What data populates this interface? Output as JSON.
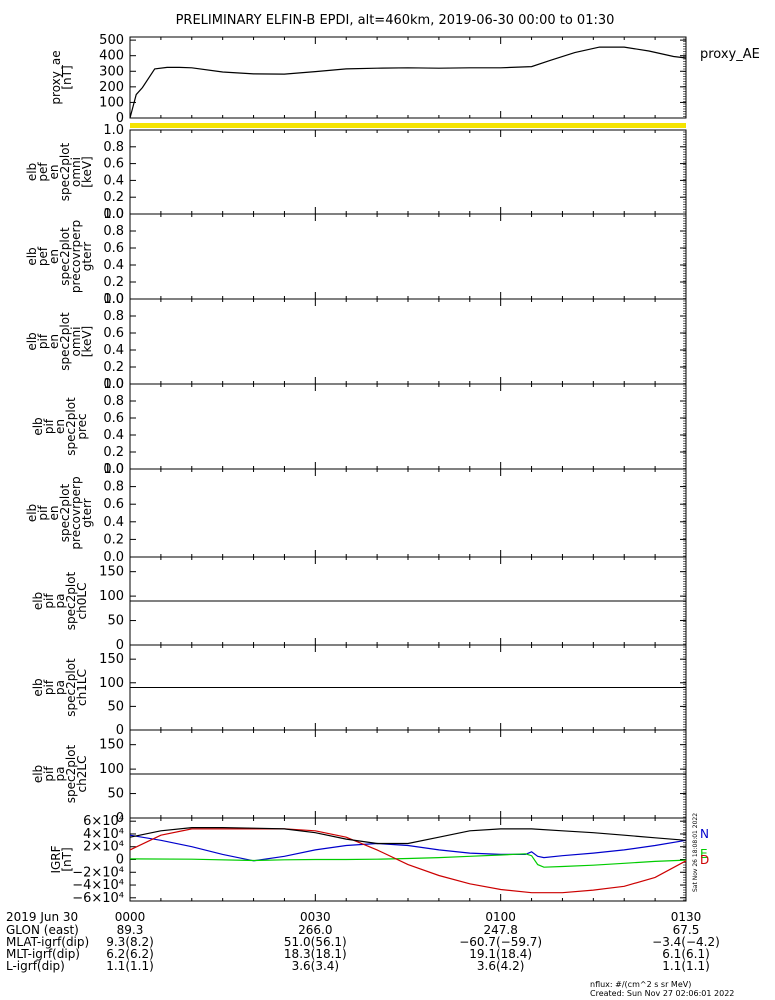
{
  "title": "PRELIMINARY ELFIN-B EPDI, alt=460km, 2019-06-30 00:00 to 01:30",
  "colors": {
    "axis": "#000000",
    "yellow_bar": "#f5e400",
    "trace_n": "#0000cc",
    "trace_e": "#00cc00",
    "trace_d": "#cc0000",
    "trace_total": "#000000"
  },
  "chart_data": [
    {
      "type": "line",
      "panel": "proxy_ae",
      "ylabel": [
        "proxy_ae",
        "[nT]"
      ],
      "yticks": [
        "500",
        "400",
        "300",
        "200",
        "100",
        "0"
      ],
      "ytick_values": [
        500,
        400,
        300,
        200,
        100,
        0
      ],
      "ylim": [
        0,
        520
      ],
      "xlim": [
        0,
        90
      ],
      "legend": "proxy_AE",
      "x": [
        0,
        1,
        2,
        4,
        6,
        8,
        10,
        15,
        20,
        25,
        30,
        35,
        40,
        45,
        50,
        55,
        60,
        65,
        68,
        72,
        76,
        80,
        84,
        88,
        90
      ],
      "values": [
        0,
        150,
        195,
        315,
        325,
        325,
        322,
        295,
        283,
        282,
        298,
        315,
        320,
        322,
        320,
        322,
        322,
        330,
        370,
        420,
        455,
        455,
        430,
        395,
        385
      ]
    },
    {
      "type": "heatmap",
      "panel": "elb_pef_omni",
      "ylabel": [
        "elb",
        "pef",
        "en",
        "spec2plot",
        "omni",
        "[keV]"
      ],
      "yticks": [
        "1.0",
        "0.8",
        "0.6",
        "0.4",
        "0.2",
        "0.0"
      ],
      "ylim": [
        0,
        1
      ],
      "values": []
    },
    {
      "type": "heatmap",
      "panel": "elb_pef_precovrperp",
      "ylabel": [
        "elb",
        "pef",
        "en",
        "spec2plot",
        "precovrperp",
        "gterr"
      ],
      "yticks": [
        "1.0",
        "0.8",
        "0.6",
        "0.4",
        "0.2",
        "0.0"
      ],
      "ylim": [
        0,
        1
      ],
      "values": []
    },
    {
      "type": "heatmap",
      "panel": "elb_pif_omni",
      "ylabel": [
        "elb",
        "pif",
        "en",
        "spec2plot",
        "omni",
        "[keV]"
      ],
      "yticks": [
        "1.0",
        "0.8",
        "0.6",
        "0.4",
        "0.2",
        "0.0"
      ],
      "ylim": [
        0,
        1
      ],
      "values": []
    },
    {
      "type": "heatmap",
      "panel": "elb_pif_prec",
      "ylabel": [
        "elb",
        "pif",
        "en",
        "spec2plot",
        "prec"
      ],
      "yticks": [
        "1.0",
        "0.8",
        "0.6",
        "0.4",
        "0.2",
        "0.0"
      ],
      "ylim": [
        0,
        1
      ],
      "values": []
    },
    {
      "type": "heatmap",
      "panel": "elb_pif_precovrperp",
      "ylabel": [
        "elb",
        "pif",
        "en",
        "spec2plot",
        "precovrperp",
        "gterr"
      ],
      "yticks": [
        "1.0",
        "0.8",
        "0.6",
        "0.4",
        "0.2",
        "0.0"
      ],
      "ylim": [
        0,
        1
      ],
      "values": []
    },
    {
      "type": "heatmap",
      "panel": "elb_pif_pa_ch0",
      "ylabel": [
        "elb",
        "pif",
        "pa",
        "spec2plot",
        "ch0LC"
      ],
      "yticks": [
        "150",
        "100",
        "50",
        "0"
      ],
      "ytick_values": [
        150,
        100,
        50,
        0
      ],
      "ylim": [
        0,
        180
      ],
      "reference_line": 90,
      "values": []
    },
    {
      "type": "heatmap",
      "panel": "elb_pif_pa_ch1",
      "ylabel": [
        "elb",
        "pif",
        "pa",
        "spec2plot",
        "ch1LC"
      ],
      "yticks": [
        "150",
        "100",
        "50",
        "0"
      ],
      "ytick_values": [
        150,
        100,
        50,
        0
      ],
      "ylim": [
        0,
        180
      ],
      "reference_line": 90,
      "values": []
    },
    {
      "type": "heatmap",
      "panel": "elb_pif_pa_ch2",
      "ylabel": [
        "elb",
        "pif",
        "pa",
        "spec2plot",
        "ch2LC"
      ],
      "yticks": [
        "150",
        "100",
        "50",
        "0"
      ],
      "ytick_values": [
        150,
        100,
        50,
        0
      ],
      "ylim": [
        0,
        180
      ],
      "reference_line": 90,
      "values": []
    },
    {
      "type": "line",
      "panel": "igrf",
      "ylabel": [
        "IGRF",
        "[nT]"
      ],
      "yticks": [
        "6×10⁴",
        "4×10⁴",
        "2×10⁴",
        "0",
        "−2×10⁴",
        "−4×10⁴",
        "−6×10⁴"
      ],
      "ytick_values": [
        60000,
        40000,
        20000,
        0,
        -20000,
        -40000,
        -60000
      ],
      "ylim": [
        -65000,
        65000
      ],
      "xlim": [
        0,
        90
      ],
      "legend": [
        "N",
        "E",
        "D"
      ],
      "series": [
        {
          "name": "N",
          "x": [
            0,
            5,
            10,
            15,
            20,
            25,
            30,
            35,
            40,
            45,
            50,
            55,
            60,
            64,
            65,
            66,
            67,
            70,
            75,
            80,
            85,
            90
          ],
          "values": [
            38000,
            30000,
            20000,
            8000,
            -2000,
            5000,
            15000,
            22000,
            25000,
            22000,
            15000,
            10000,
            8000,
            8000,
            12000,
            5000,
            3000,
            6000,
            10000,
            15000,
            22000,
            30000
          ]
        },
        {
          "name": "E",
          "x": [
            0,
            10,
            20,
            25,
            30,
            35,
            40,
            45,
            50,
            55,
            60,
            64,
            65,
            66,
            67,
            70,
            75,
            80,
            85,
            90
          ],
          "values": [
            1000,
            500,
            -1500,
            -500,
            0,
            0,
            500,
            1500,
            3000,
            5000,
            7000,
            9000,
            6000,
            -8000,
            -12000,
            -11000,
            -9000,
            -6000,
            -3000,
            -1000
          ]
        },
        {
          "name": "D",
          "x": [
            0,
            5,
            10,
            15,
            20,
            25,
            30,
            35,
            40,
            45,
            50,
            55,
            60,
            65,
            70,
            75,
            80,
            85,
            90
          ],
          "values": [
            15000,
            38000,
            48000,
            48000,
            48000,
            48000,
            45000,
            35000,
            15000,
            -8000,
            -25000,
            -38000,
            -47000,
            -52000,
            -52000,
            -48000,
            -42000,
            -28000,
            -2000
          ]
        },
        {
          "name": "",
          "x": [
            0,
            5,
            10,
            15,
            20,
            25,
            30,
            35,
            40,
            45,
            50,
            55,
            60,
            65,
            70,
            75,
            80,
            85,
            90
          ],
          "values": [
            35000,
            45000,
            50000,
            50000,
            49000,
            48000,
            42000,
            32000,
            25000,
            25000,
            35000,
            45000,
            48000,
            48000,
            45000,
            42000,
            38000,
            34000,
            30000
          ]
        }
      ]
    }
  ],
  "xaxis": {
    "row_labels": [
      "2019 Jun 30",
      "GLON (east)",
      "MLAT-igrf(dip)",
      "MLT-igrf(dip)",
      "L-igrf(dip)"
    ],
    "ticks": [
      {
        "t": 0,
        "values": [
          "0000",
          "89.3",
          "9.3(8.2)",
          "6.2(6.2)",
          "1.1(1.1)"
        ]
      },
      {
        "t": 30,
        "values": [
          "0030",
          "266.0",
          "51.0(56.1)",
          "18.3(18.1)",
          "3.6(3.4)"
        ]
      },
      {
        "t": 60,
        "values": [
          "0100",
          "247.8",
          "−60.7(−59.7)",
          "19.1(18.4)",
          "3.6(4.2)"
        ]
      },
      {
        "t": 90,
        "values": [
          "0130",
          "67.5",
          "−3.4(−4.2)",
          "6.1(6.1)",
          "1.1(1.1)"
        ]
      }
    ]
  },
  "footer": {
    "nflux": "nflux: #/(cm^2 s sr MeV)",
    "created": "Created: Sun Nov 27 02:06:01 2022"
  },
  "side_stamp": "Sat Nov 26 18:08:01 2022"
}
